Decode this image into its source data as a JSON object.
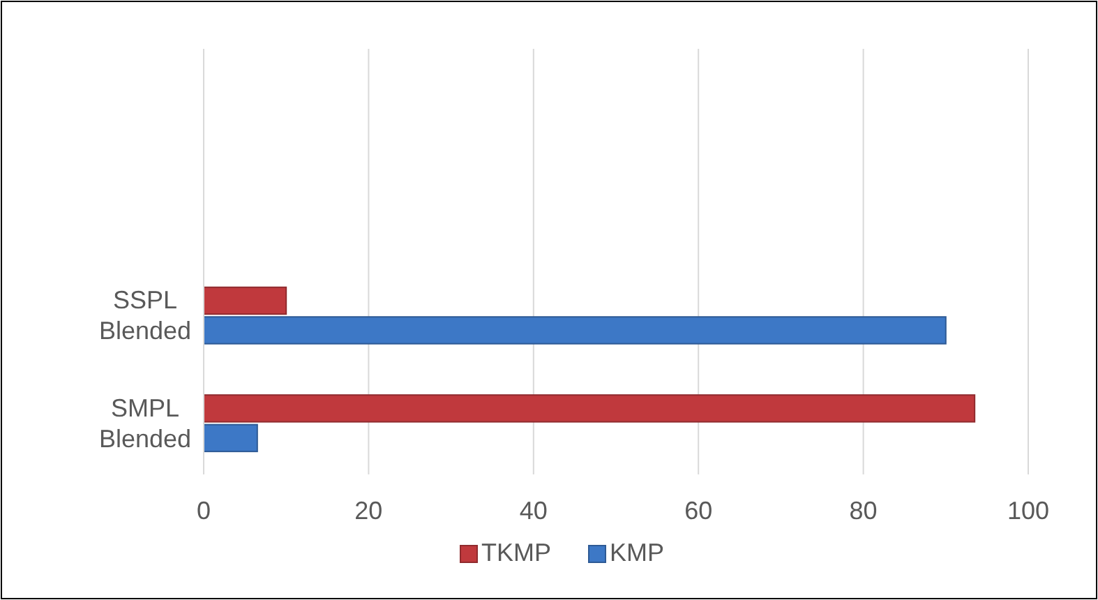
{
  "chart_data": {
    "type": "bar",
    "orientation": "horizontal",
    "categories": [
      null,
      null,
      "SSPL\nBlended",
      "SMPL\nBlended"
    ],
    "series": [
      {
        "name": "KMP",
        "color": "#3d78c6",
        "values": [
          null,
          null,
          90,
          6.5
        ]
      },
      {
        "name": "TKMP",
        "color": "#c0393d",
        "values": [
          null,
          null,
          10,
          93.5
        ]
      }
    ],
    "xlim": [
      0,
      100
    ],
    "xticks": [
      0,
      20,
      40,
      60,
      80,
      100
    ],
    "grid": "x",
    "legend": "bottom"
  }
}
